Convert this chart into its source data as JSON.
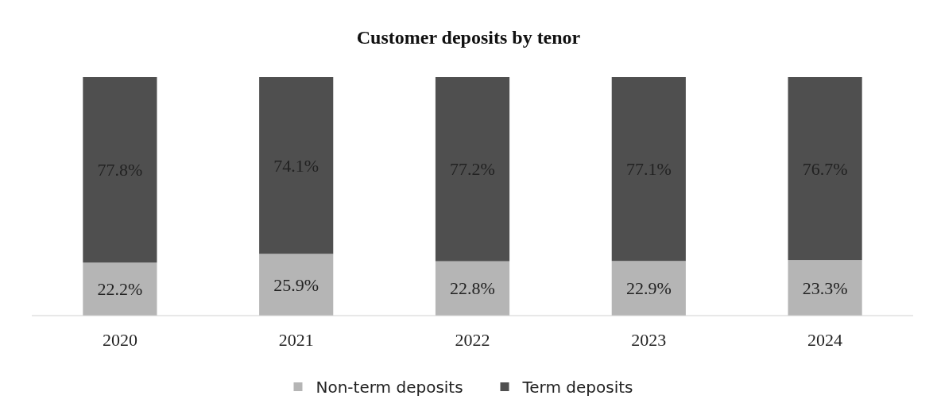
{
  "chart_data": {
    "type": "bar",
    "title": "Customer deposits by tenor",
    "stacked": true,
    "legend": "bottom",
    "categories": [
      "2020",
      "2021",
      "2022",
      "2023",
      "2024"
    ],
    "series": [
      {
        "name": "Non-term deposits",
        "color": "#b5b5b5",
        "values": [
          22.2,
          25.9,
          22.8,
          22.9,
          23.3
        ],
        "value_labels": [
          "22.2%",
          "25.9%",
          "22.8%",
          "22.9%",
          "23.3%"
        ]
      },
      {
        "name": "Term deposits",
        "color": "#4f4f4f",
        "values": [
          77.8,
          74.1,
          77.2,
          77.1,
          76.7
        ],
        "value_labels": [
          "77.8%",
          "74.1%",
          "77.2%",
          "77.1%",
          "76.7%"
        ]
      }
    ]
  }
}
